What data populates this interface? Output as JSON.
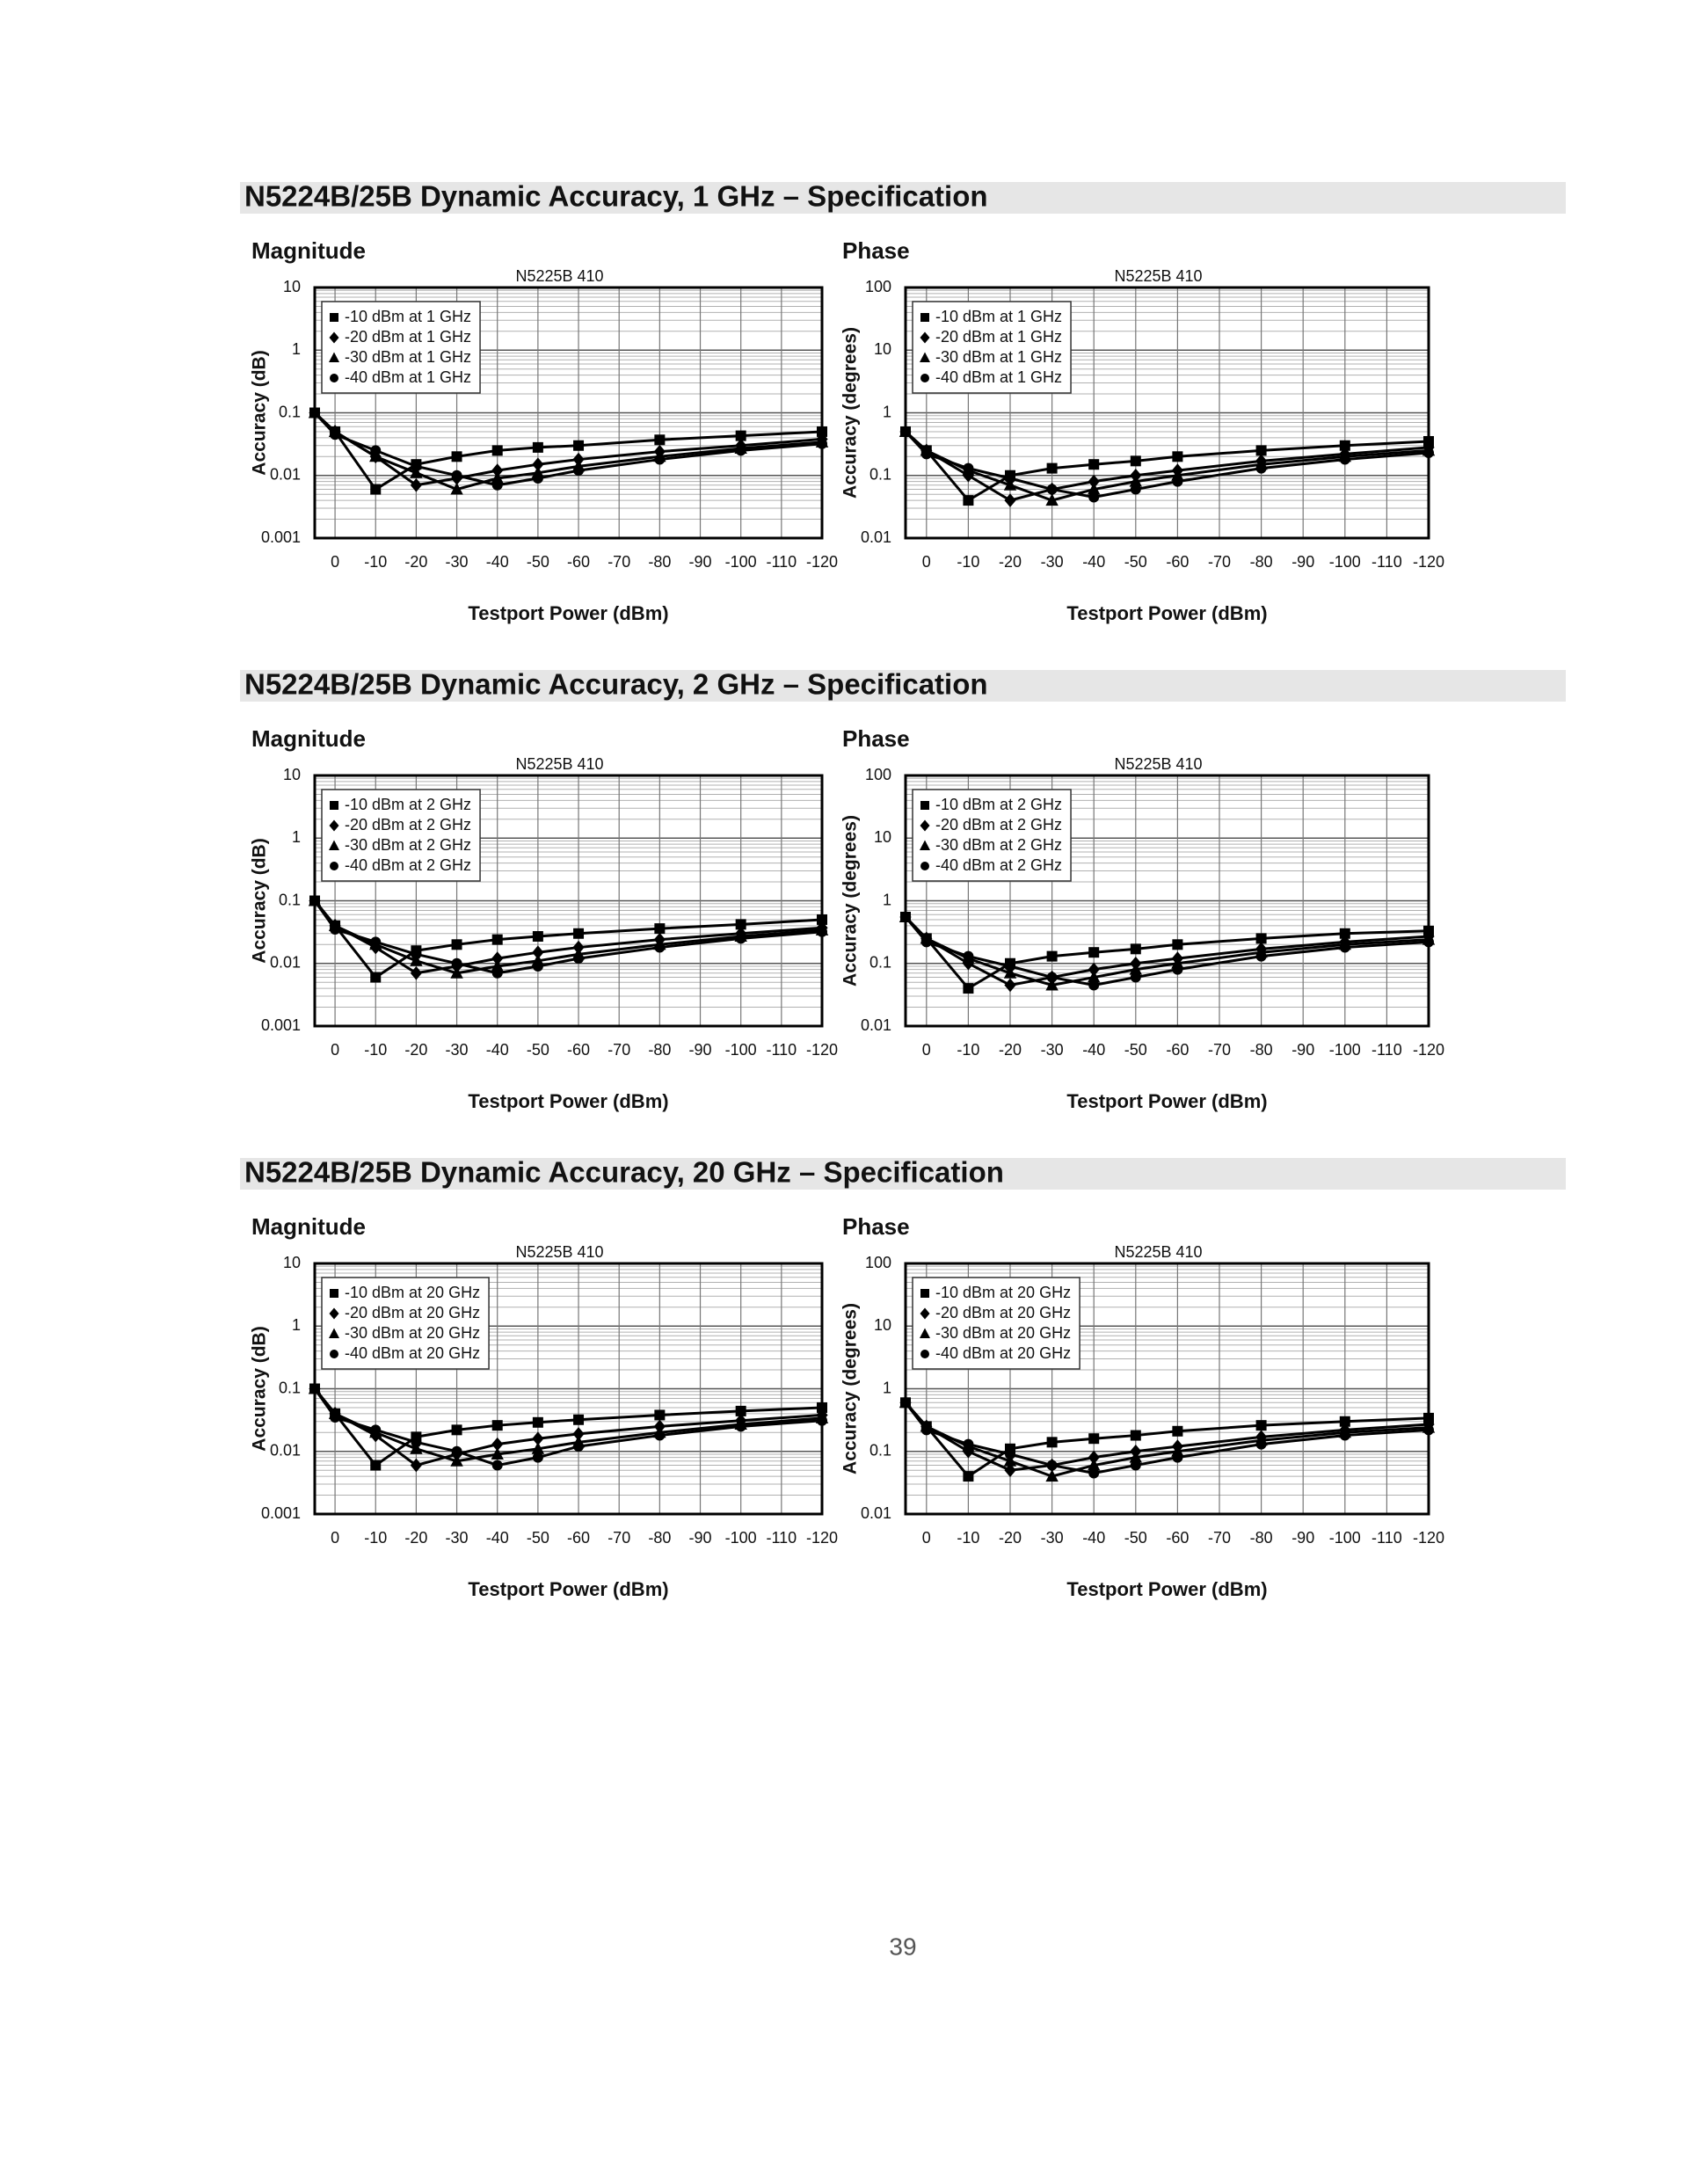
{
  "headings": [
    "N5224B/25B Dynamic Accuracy, 1 GHz – Specification",
    "N5224B/25B Dynamic Accuracy, 2 GHz – Specification",
    "N5224B/25B Dynamic Accuracy, 20 GHz – Specification"
  ],
  "page_number": "39",
  "chart_data": [
    {
      "type": "line",
      "panel": "Magnitude",
      "title": "N5225B  410",
      "y_label": "Accuracy (dB)",
      "x_label": "Testport Power (dBm)",
      "log_y": true,
      "grid": true,
      "legend": "upper-left",
      "x": [
        5,
        0,
        -10,
        -20,
        -30,
        -40,
        -50,
        -60,
        -80,
        -100,
        -120
      ],
      "xlim": [
        5,
        -120
      ],
      "xticks": [
        0,
        -10,
        -20,
        -30,
        -40,
        -50,
        -60,
        -70,
        -80,
        -90,
        -100,
        -110,
        -120
      ],
      "ylim": [
        0.001,
        10
      ],
      "yticks": [
        0.001,
        0.01,
        0.1,
        1,
        10
      ],
      "series": [
        {
          "name": "-10 dBm at 1 GHz",
          "color": "#000000",
          "marker": "square",
          "values": [
            0.1,
            0.05,
            0.006,
            0.015,
            0.02,
            0.025,
            0.028,
            0.03,
            0.037,
            0.043,
            0.05
          ]
        },
        {
          "name": "-20 dBm at 1 GHz",
          "color": "#000000",
          "marker": "diamond",
          "values": [
            0.1,
            0.05,
            0.02,
            0.007,
            0.009,
            0.012,
            0.015,
            0.018,
            0.024,
            0.03,
            0.038
          ]
        },
        {
          "name": "-30 dBm at 1 GHz",
          "color": "#000000",
          "marker": "triangle",
          "values": [
            0.1,
            0.05,
            0.02,
            0.011,
            0.006,
            0.009,
            0.011,
            0.014,
            0.02,
            0.027,
            0.034
          ]
        },
        {
          "name": "-40 dBm at 1 GHz",
          "color": "#000000",
          "marker": "circle",
          "values": [
            0.1,
            0.045,
            0.025,
            0.014,
            0.01,
            0.007,
            0.009,
            0.012,
            0.018,
            0.025,
            0.032
          ]
        }
      ]
    },
    {
      "type": "line",
      "panel": "Phase",
      "title": "N5225B  410",
      "y_label": "Accuracy (degrees)",
      "x_label": "Testport Power (dBm)",
      "log_y": true,
      "grid": true,
      "legend": "upper-left",
      "x": [
        5,
        0,
        -10,
        -20,
        -30,
        -40,
        -50,
        -60,
        -80,
        -100,
        -120
      ],
      "xlim": [
        5,
        -120
      ],
      "xticks": [
        0,
        -10,
        -20,
        -30,
        -40,
        -50,
        -60,
        -70,
        -80,
        -90,
        -100,
        -110,
        -120
      ],
      "ylim": [
        0.01,
        100
      ],
      "yticks": [
        0.01,
        0.1,
        1,
        10,
        100
      ],
      "series": [
        {
          "name": "-10 dBm at 1 GHz",
          "color": "#000000",
          "marker": "square",
          "values": [
            0.5,
            0.25,
            0.04,
            0.1,
            0.13,
            0.15,
            0.17,
            0.2,
            0.25,
            0.3,
            0.35
          ]
        },
        {
          "name": "-20 dBm at 1 GHz",
          "color": "#000000",
          "marker": "diamond",
          "values": [
            0.5,
            0.25,
            0.1,
            0.04,
            0.06,
            0.08,
            0.1,
            0.12,
            0.17,
            0.22,
            0.28
          ]
        },
        {
          "name": "-30 dBm at 1 GHz",
          "color": "#000000",
          "marker": "triangle",
          "values": [
            0.5,
            0.25,
            0.12,
            0.07,
            0.04,
            0.06,
            0.08,
            0.1,
            0.15,
            0.2,
            0.25
          ]
        },
        {
          "name": "-40 dBm at 1 GHz",
          "color": "#000000",
          "marker": "circle",
          "values": [
            0.5,
            0.22,
            0.13,
            0.09,
            0.06,
            0.045,
            0.06,
            0.08,
            0.13,
            0.18,
            0.23
          ]
        }
      ]
    },
    {
      "type": "line",
      "panel": "Magnitude",
      "title": "N5225B  410",
      "y_label": "Accuracy (dB)",
      "x_label": "Testport Power (dBm)",
      "log_y": true,
      "grid": true,
      "legend": "upper-left",
      "x": [
        5,
        0,
        -10,
        -20,
        -30,
        -40,
        -50,
        -60,
        -80,
        -100,
        -120
      ],
      "xlim": [
        5,
        -120
      ],
      "xticks": [
        0,
        -10,
        -20,
        -30,
        -40,
        -50,
        -60,
        -70,
        -80,
        -90,
        -100,
        -110,
        -120
      ],
      "ylim": [
        0.001,
        10
      ],
      "yticks": [
        0.001,
        0.01,
        0.1,
        1,
        10
      ],
      "series": [
        {
          "name": "-10 dBm at 2 GHz",
          "color": "#000000",
          "marker": "square",
          "values": [
            0.1,
            0.04,
            0.006,
            0.016,
            0.02,
            0.024,
            0.027,
            0.03,
            0.036,
            0.042,
            0.05
          ]
        },
        {
          "name": "-20 dBm at 2 GHz",
          "color": "#000000",
          "marker": "diamond",
          "values": [
            0.1,
            0.04,
            0.018,
            0.007,
            0.009,
            0.012,
            0.015,
            0.018,
            0.024,
            0.03,
            0.037
          ]
        },
        {
          "name": "-30 dBm at 2 GHz",
          "color": "#000000",
          "marker": "triangle",
          "values": [
            0.1,
            0.04,
            0.02,
            0.011,
            0.007,
            0.009,
            0.011,
            0.014,
            0.02,
            0.027,
            0.034
          ]
        },
        {
          "name": "-40 dBm at 2 GHz",
          "color": "#000000",
          "marker": "circle",
          "values": [
            0.1,
            0.035,
            0.022,
            0.014,
            0.01,
            0.007,
            0.009,
            0.012,
            0.018,
            0.025,
            0.032
          ]
        }
      ]
    },
    {
      "type": "line",
      "panel": "Phase",
      "title": "N5225B  410",
      "y_label": "Accuracy (degrees)",
      "x_label": "Testport Power (dBm)",
      "log_y": true,
      "grid": true,
      "legend": "upper-left",
      "x": [
        5,
        0,
        -10,
        -20,
        -30,
        -40,
        -50,
        -60,
        -80,
        -100,
        -120
      ],
      "xlim": [
        5,
        -120
      ],
      "xticks": [
        0,
        -10,
        -20,
        -30,
        -40,
        -50,
        -60,
        -70,
        -80,
        -90,
        -100,
        -110,
        -120
      ],
      "ylim": [
        0.01,
        100
      ],
      "yticks": [
        0.01,
        0.1,
        1,
        10,
        100
      ],
      "series": [
        {
          "name": "-10 dBm at 2 GHz",
          "color": "#000000",
          "marker": "square",
          "values": [
            0.55,
            0.25,
            0.04,
            0.1,
            0.13,
            0.15,
            0.17,
            0.2,
            0.25,
            0.3,
            0.33
          ]
        },
        {
          "name": "-20 dBm at 2 GHz",
          "color": "#000000",
          "marker": "diamond",
          "values": [
            0.55,
            0.25,
            0.1,
            0.045,
            0.06,
            0.08,
            0.1,
            0.12,
            0.17,
            0.22,
            0.27
          ]
        },
        {
          "name": "-30 dBm at 2 GHz",
          "color": "#000000",
          "marker": "triangle",
          "values": [
            0.55,
            0.25,
            0.12,
            0.07,
            0.045,
            0.06,
            0.08,
            0.1,
            0.15,
            0.2,
            0.24
          ]
        },
        {
          "name": "-40 dBm at 2 GHz",
          "color": "#000000",
          "marker": "circle",
          "values": [
            0.55,
            0.22,
            0.13,
            0.09,
            0.06,
            0.045,
            0.06,
            0.08,
            0.13,
            0.18,
            0.22
          ]
        }
      ]
    },
    {
      "type": "line",
      "panel": "Magnitude",
      "title": "N5225B  410",
      "y_label": "Accuracy (dB)",
      "x_label": "Testport Power (dBm)",
      "log_y": true,
      "grid": true,
      "legend": "upper-left",
      "x": [
        5,
        0,
        -10,
        -20,
        -30,
        -40,
        -50,
        -60,
        -80,
        -100,
        -120
      ],
      "xlim": [
        5,
        -120
      ],
      "xticks": [
        0,
        -10,
        -20,
        -30,
        -40,
        -50,
        -60,
        -70,
        -80,
        -90,
        -100,
        -110,
        -120
      ],
      "ylim": [
        0.001,
        10
      ],
      "yticks": [
        0.001,
        0.01,
        0.1,
        1,
        10
      ],
      "series": [
        {
          "name": "-10 dBm at 20 GHz",
          "color": "#000000",
          "marker": "square",
          "values": [
            0.1,
            0.04,
            0.006,
            0.017,
            0.022,
            0.026,
            0.029,
            0.032,
            0.038,
            0.044,
            0.05
          ]
        },
        {
          "name": "-20 dBm at 20 GHz",
          "color": "#000000",
          "marker": "diamond",
          "values": [
            0.1,
            0.04,
            0.018,
            0.006,
            0.009,
            0.013,
            0.016,
            0.019,
            0.025,
            0.031,
            0.038
          ]
        },
        {
          "name": "-30 dBm at 20 GHz",
          "color": "#000000",
          "marker": "triangle",
          "values": [
            0.1,
            0.04,
            0.02,
            0.011,
            0.007,
            0.009,
            0.011,
            0.014,
            0.02,
            0.027,
            0.034
          ]
        },
        {
          "name": "-40 dBm at 20 GHz",
          "color": "#000000",
          "marker": "circle",
          "values": [
            0.1,
            0.035,
            0.022,
            0.014,
            0.01,
            0.006,
            0.008,
            0.012,
            0.018,
            0.025,
            0.031
          ]
        }
      ]
    },
    {
      "type": "line",
      "panel": "Phase",
      "title": "N5225B  410",
      "y_label": "Accuracy (degrees)",
      "x_label": "Testport Power (dBm)",
      "log_y": true,
      "grid": true,
      "legend": "upper-left",
      "x": [
        5,
        0,
        -10,
        -20,
        -30,
        -40,
        -50,
        -60,
        -80,
        -100,
        -120
      ],
      "xlim": [
        5,
        -120
      ],
      "xticks": [
        0,
        -10,
        -20,
        -30,
        -40,
        -50,
        -60,
        -70,
        -80,
        -90,
        -100,
        -110,
        -120
      ],
      "ylim": [
        0.01,
        100
      ],
      "yticks": [
        0.01,
        0.1,
        1,
        10,
        100
      ],
      "series": [
        {
          "name": "-10 dBm at 20 GHz",
          "color": "#000000",
          "marker": "square",
          "values": [
            0.6,
            0.25,
            0.04,
            0.11,
            0.14,
            0.16,
            0.18,
            0.21,
            0.26,
            0.3,
            0.34
          ]
        },
        {
          "name": "-20 dBm at 20 GHz",
          "color": "#000000",
          "marker": "diamond",
          "values": [
            0.6,
            0.25,
            0.1,
            0.05,
            0.06,
            0.08,
            0.1,
            0.12,
            0.17,
            0.22,
            0.27
          ]
        },
        {
          "name": "-30 dBm at 20 GHz",
          "color": "#000000",
          "marker": "triangle",
          "values": [
            0.6,
            0.25,
            0.12,
            0.07,
            0.04,
            0.06,
            0.08,
            0.1,
            0.15,
            0.2,
            0.24
          ]
        },
        {
          "name": "-40 dBm at 20 GHz",
          "color": "#000000",
          "marker": "circle",
          "values": [
            0.6,
            0.22,
            0.13,
            0.09,
            0.06,
            0.045,
            0.06,
            0.08,
            0.13,
            0.18,
            0.22
          ]
        }
      ]
    }
  ]
}
